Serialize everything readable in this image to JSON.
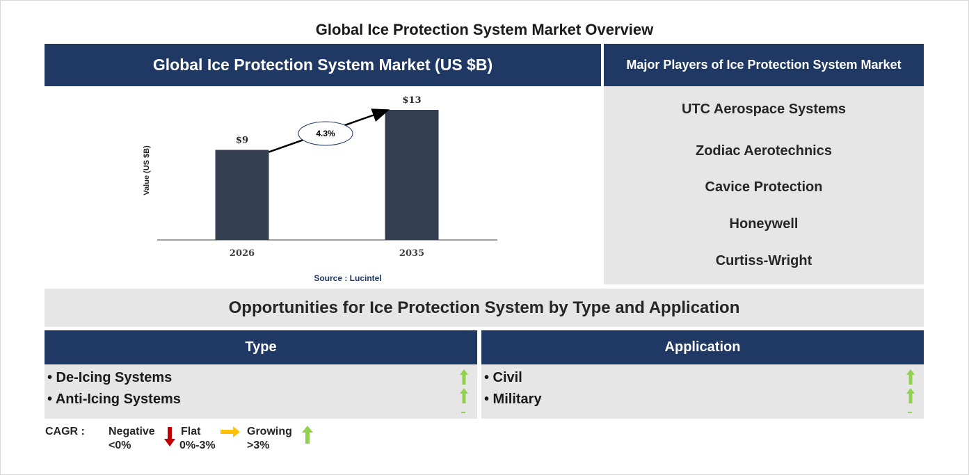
{
  "title": "Global Ice Protection System Market Overview",
  "chart_panel": {
    "header": "Global Ice Protection System Market (US $B)",
    "source": "Source : Lucintel"
  },
  "chart_data": {
    "type": "bar",
    "categories": [
      "2026",
      "2035"
    ],
    "values": [
      9,
      13
    ],
    "value_labels": [
      "$9",
      "$13"
    ],
    "ylabel": "Value (US $B)",
    "xlabel": "",
    "annotation": "4.3%",
    "colors": {
      "bar": "#333f50",
      "arrow": "#000000"
    }
  },
  "players": {
    "header": "Major Players of Ice Protection System Market",
    "items": [
      "UTC Aerospace Systems",
      "Zodiac Aerotechnics",
      "Cavice Protection",
      "Honeywell",
      "Curtiss-Wright"
    ]
  },
  "opportunities": {
    "title": "Opportunities for Ice Protection System by Type and Application",
    "type": {
      "header": "Type",
      "items": [
        "• De-Icing Systems",
        "• Anti-Icing Systems"
      ]
    },
    "application": {
      "header": "Application",
      "items": [
        "• Civil",
        "• Military"
      ]
    }
  },
  "cagr_legend": {
    "label": "CAGR  :",
    "negative": {
      "name": "Negative",
      "range": "<0%"
    },
    "flat": {
      "name": "Flat",
      "range": "0%-3%"
    },
    "growing": {
      "name": "Growing",
      "range": ">3%"
    }
  },
  "colors": {
    "navy": "#1f3864",
    "panel_grey": "#e6e6e6",
    "up_green": "#92d050",
    "down_red": "#c00000",
    "flat_yellow": "#ffc000"
  }
}
